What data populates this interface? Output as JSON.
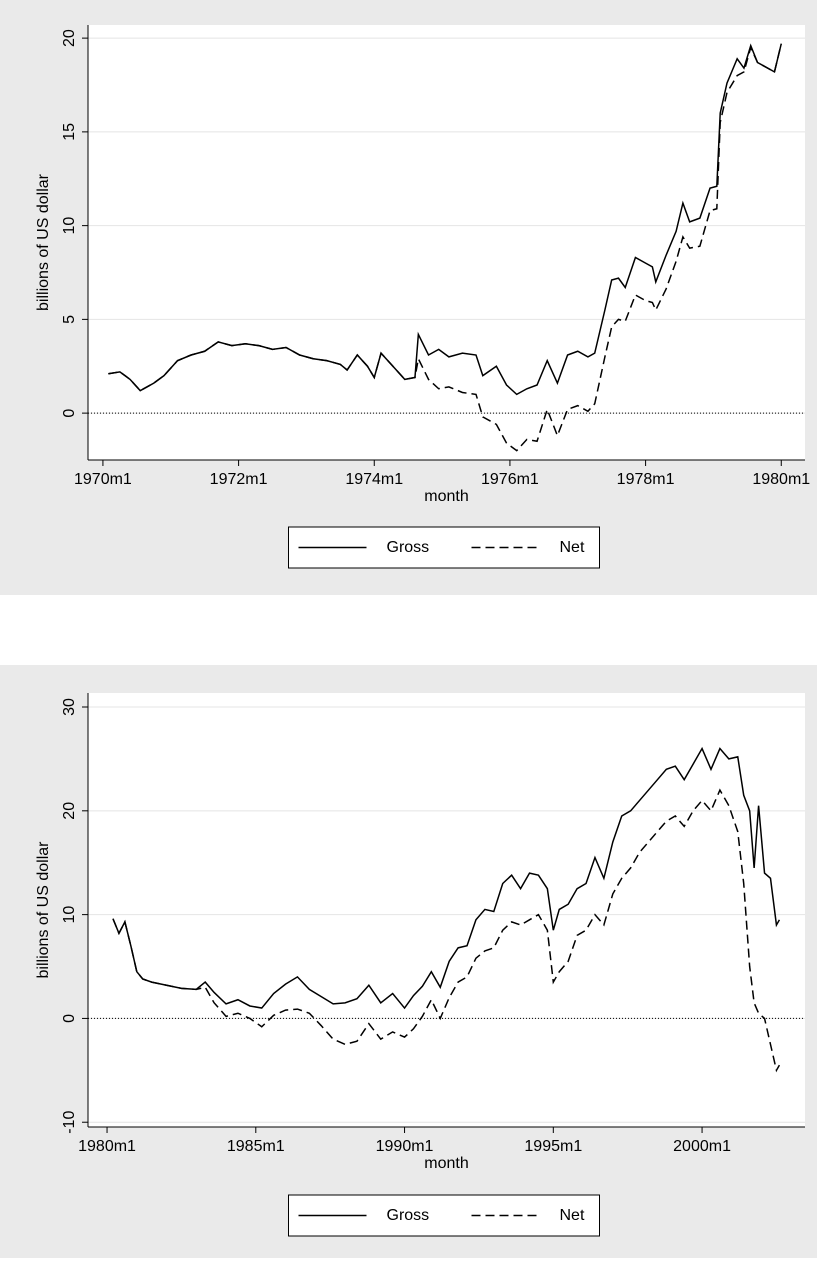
{
  "chart_data": [
    {
      "type": "line",
      "xlabel": "month",
      "ylabel": "billions of US dollar",
      "x": [
        1970.08,
        1970.25,
        1970.4,
        1970.55,
        1970.75,
        1970.9,
        1971.1,
        1971.3,
        1971.5,
        1971.7,
        1971.9,
        1972.1,
        1972.3,
        1972.5,
        1972.7,
        1972.9,
        1973.1,
        1973.3,
        1973.5,
        1973.6,
        1973.75,
        1973.9,
        1974.0,
        1974.1,
        1974.3,
        1974.45,
        1974.6,
        1974.65,
        1974.8,
        1974.95,
        1975.1,
        1975.3,
        1975.5,
        1975.6,
        1975.8,
        1975.95,
        1976.1,
        1976.25,
        1976.4,
        1976.55,
        1976.7,
        1976.85,
        1977.0,
        1977.15,
        1977.25,
        1977.4,
        1977.5,
        1977.6,
        1977.7,
        1977.85,
        1978.0,
        1978.1,
        1978.15,
        1978.3,
        1978.45,
        1978.55,
        1978.65,
        1978.8,
        1978.95,
        1979.05,
        1979.1,
        1979.2,
        1979.35,
        1979.45,
        1979.55,
        1979.65,
        1979.8,
        1979.9,
        1980.0
      ],
      "series": [
        {
          "name": "Gross",
          "color": "#000000",
          "line_style": "solid",
          "values": [
            2.1,
            2.2,
            1.8,
            1.2,
            1.6,
            2.0,
            2.8,
            3.1,
            3.3,
            3.8,
            3.6,
            3.7,
            3.6,
            3.4,
            3.5,
            3.1,
            2.9,
            2.8,
            2.6,
            2.3,
            3.1,
            2.5,
            1.9,
            3.2,
            2.4,
            1.8,
            1.9,
            4.2,
            3.1,
            3.4,
            3.0,
            3.2,
            3.1,
            2.0,
            2.5,
            1.5,
            1.0,
            1.3,
            1.5,
            2.8,
            1.6,
            3.1,
            3.3,
            3.0,
            3.2,
            5.5,
            7.1,
            7.2,
            6.7,
            8.3,
            8.0,
            7.8,
            7.0,
            8.4,
            9.7,
            11.2,
            10.2,
            10.4,
            12.0,
            12.1,
            16.0,
            17.6,
            18.9,
            18.4,
            19.6,
            18.7,
            18.4,
            18.2,
            19.7
          ]
        },
        {
          "name": "Net",
          "color": "#000000",
          "line_style": "dashed",
          "values": [
            2.1,
            2.2,
            1.8,
            1.2,
            1.6,
            2.0,
            2.8,
            3.1,
            3.3,
            3.8,
            3.6,
            3.7,
            3.6,
            3.4,
            3.5,
            3.1,
            2.9,
            2.8,
            2.6,
            2.3,
            3.1,
            2.5,
            1.9,
            3.2,
            2.4,
            1.8,
            1.9,
            2.9,
            1.8,
            1.3,
            1.4,
            1.1,
            1.0,
            -0.2,
            -0.6,
            -1.6,
            -2.0,
            -1.4,
            -1.5,
            0.2,
            -1.2,
            0.2,
            0.4,
            0.1,
            0.5,
            3.0,
            4.6,
            5.0,
            4.9,
            6.3,
            6.0,
            5.9,
            5.5,
            6.6,
            8.1,
            9.4,
            8.8,
            8.9,
            10.8,
            10.9,
            15.5,
            17.1,
            18.0,
            18.2,
            19.5,
            18.7,
            18.4,
            18.2,
            19.7
          ]
        }
      ],
      "xlim": [
        1969.78,
        1980.35
      ],
      "ylim": [
        -2.5,
        20.7
      ],
      "xticks": [
        {
          "value": 1970,
          "label": "1970m1"
        },
        {
          "value": 1972,
          "label": "1972m1"
        },
        {
          "value": 1974,
          "label": "1974m1"
        },
        {
          "value": 1976,
          "label": "1976m1"
        },
        {
          "value": 1978,
          "label": "1978m1"
        },
        {
          "value": 1980,
          "label": "1980m1"
        }
      ],
      "yticks": [
        0,
        5,
        10,
        15,
        20
      ],
      "grid": true,
      "reference_line": 0,
      "legend": "bottom"
    },
    {
      "type": "line",
      "xlabel": "month",
      "ylabel": "billions of US dollar",
      "x": [
        1980.2,
        1980.4,
        1980.6,
        1980.8,
        1981.0,
        1981.2,
        1981.5,
        1982.0,
        1982.5,
        1983.0,
        1983.3,
        1983.6,
        1984.0,
        1984.4,
        1984.8,
        1985.2,
        1985.6,
        1986.0,
        1986.4,
        1986.8,
        1987.2,
        1987.6,
        1988.0,
        1988.4,
        1988.8,
        1989.2,
        1989.6,
        1990.0,
        1990.3,
        1990.6,
        1990.9,
        1991.2,
        1991.5,
        1991.8,
        1992.1,
        1992.4,
        1992.7,
        1993.0,
        1993.3,
        1993.6,
        1993.9,
        1994.2,
        1994.5,
        1994.8,
        1995.0,
        1995.2,
        1995.5,
        1995.8,
        1996.1,
        1996.4,
        1996.7,
        1997.0,
        1997.3,
        1997.6,
        1997.9,
        1998.2,
        1998.5,
        1998.8,
        1999.1,
        1999.4,
        1999.7,
        2000.0,
        2000.3,
        2000.6,
        2000.9,
        2001.2,
        2001.4,
        2001.6,
        2001.75,
        2001.9,
        2002.1,
        2002.3,
        2002.5,
        2002.6
      ],
      "series": [
        {
          "name": "Gross",
          "color": "#000000",
          "line_style": "solid",
          "values": [
            9.6,
            8.2,
            9.3,
            7.0,
            4.5,
            3.8,
            3.5,
            3.2,
            2.9,
            2.8,
            3.5,
            2.5,
            1.4,
            1.8,
            1.2,
            1.0,
            2.4,
            3.3,
            4.0,
            2.8,
            2.1,
            1.4,
            1.5,
            1.9,
            3.2,
            1.5,
            2.4,
            1.0,
            2.2,
            3.1,
            4.5,
            3.0,
            5.5,
            6.8,
            7.0,
            9.5,
            10.5,
            10.3,
            13.0,
            13.8,
            12.5,
            14.0,
            13.8,
            12.5,
            8.5,
            10.5,
            11.0,
            12.5,
            13.0,
            15.5,
            13.5,
            17.0,
            19.5,
            20.0,
            21.0,
            22.0,
            23.0,
            24.0,
            24.3,
            23.0,
            24.5,
            26.0,
            24.0,
            26.0,
            25.0,
            25.2,
            21.5,
            20.0,
            14.5,
            20.5,
            14.0,
            13.5,
            9.0,
            9.5
          ]
        },
        {
          "name": "Net",
          "color": "#000000",
          "line_style": "dashed",
          "values": [
            9.6,
            8.2,
            9.3,
            7.0,
            4.5,
            3.8,
            3.5,
            3.2,
            2.9,
            2.8,
            3.0,
            1.5,
            0.2,
            0.5,
            0.0,
            -0.8,
            0.3,
            0.8,
            0.9,
            0.5,
            -0.7,
            -2.0,
            -2.5,
            -2.2,
            -0.5,
            -2.0,
            -1.3,
            -1.8,
            -1.0,
            0.2,
            1.8,
            0.0,
            2.0,
            3.5,
            4.0,
            5.8,
            6.5,
            6.8,
            8.5,
            9.3,
            9.0,
            9.5,
            10.0,
            8.5,
            3.5,
            4.5,
            5.5,
            8.0,
            8.5,
            10.0,
            9.0,
            12.0,
            13.5,
            14.5,
            16.0,
            17.0,
            18.0,
            19.0,
            19.5,
            18.5,
            20.0,
            21.0,
            20.0,
            22.0,
            20.5,
            18.0,
            13.0,
            5.0,
            1.5,
            0.5,
            0.0,
            -2.5,
            -5.0,
            -4.5
          ]
        }
      ],
      "xlim": [
        1979.36,
        2003.46
      ],
      "ylim": [
        -10.46,
        31.35
      ],
      "xticks": [
        {
          "value": 1980,
          "label": "1980m1"
        },
        {
          "value": 1985,
          "label": "1985m1"
        },
        {
          "value": 1990,
          "label": "1990m1"
        },
        {
          "value": 1995,
          "label": "1995m1"
        },
        {
          "value": 2000,
          "label": "2000m1"
        }
      ],
      "yticks": [
        -10,
        0,
        10,
        20,
        30
      ],
      "grid": true,
      "reference_line": 0,
      "legend": "bottom"
    }
  ]
}
